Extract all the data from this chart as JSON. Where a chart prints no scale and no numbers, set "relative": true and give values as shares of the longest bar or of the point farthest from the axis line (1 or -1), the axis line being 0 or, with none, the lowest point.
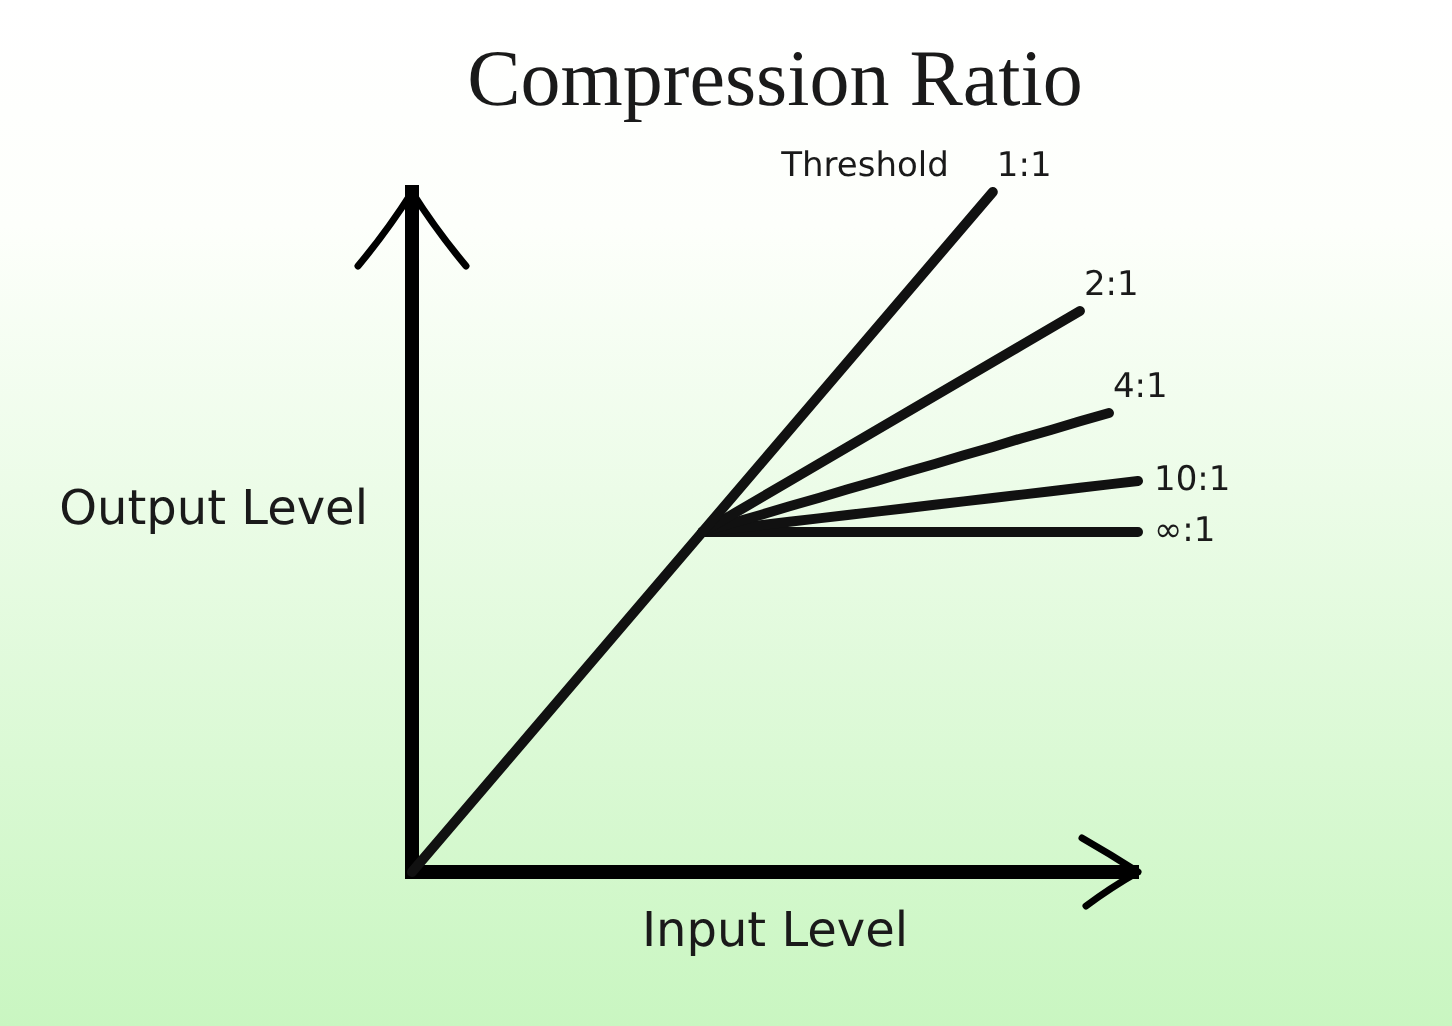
{
  "chart_data": {
    "type": "line",
    "title": "Compression Ratio",
    "xlabel": "Input Level",
    "ylabel": "Output Level",
    "annotations": [
      "Threshold"
    ],
    "relative": true,
    "legend": false,
    "marker": "none",
    "line_style": "solid",
    "categories": [
      null,
      null,
      null,
      null,
      null,
      null,
      null,
      null,
      null,
      null,
      null,
      null,
      null,
      null,
      null,
      null,
      null,
      null,
      null,
      null,
      null,
      null,
      null,
      null,
      null,
      null
    ],
    "series": [
      {
        "name": "1:1",
        "color": "#111111",
        "values": [
          0,
          0.05,
          0.1,
          0.15,
          0.2,
          0.25,
          0.3,
          0.35,
          0.4,
          0.45,
          0.5,
          0.55,
          0.6,
          0.65,
          0.7,
          0.75,
          0.8,
          0.85,
          0.9,
          0.95,
          1,
          null,
          null,
          null,
          null,
          null
        ]
      },
      {
        "name": "2:1",
        "color": "#111111",
        "values": [
          null,
          null,
          null,
          null,
          null,
          null,
          null,
          null,
          null,
          null,
          0.5,
          0.525,
          0.55,
          0.575,
          0.6,
          0.625,
          0.65,
          0.675,
          0.7,
          0.725,
          0.75,
          0.775,
          0.8,
          0.825,
          null,
          null
        ]
      },
      {
        "name": "4:1",
        "color": "#111111",
        "values": [
          null,
          null,
          null,
          null,
          null,
          null,
          null,
          null,
          null,
          null,
          0.5,
          0.513,
          0.525,
          0.538,
          0.55,
          0.563,
          0.575,
          0.588,
          0.6,
          0.613,
          0.625,
          0.638,
          0.65,
          0.663,
          0.675,
          null
        ]
      },
      {
        "name": "10:1",
        "color": "#111111",
        "values": [
          null,
          null,
          null,
          null,
          null,
          null,
          null,
          null,
          null,
          null,
          0.5,
          0.505,
          0.51,
          0.515,
          0.52,
          0.525,
          0.53,
          0.535,
          0.54,
          0.545,
          0.55,
          0.555,
          0.56,
          0.565,
          0.57,
          0.575
        ]
      },
      {
        "name": "∞:1",
        "color": "#111111",
        "values": [
          null,
          null,
          null,
          null,
          null,
          null,
          null,
          null,
          null,
          null,
          0.5,
          0.5,
          0.5,
          0.5,
          0.5,
          0.5,
          0.5,
          0.5,
          0.5,
          0.5,
          0.5,
          0.5,
          0.5,
          0.5,
          0.5,
          0.5
        ]
      }
    ]
  }
}
